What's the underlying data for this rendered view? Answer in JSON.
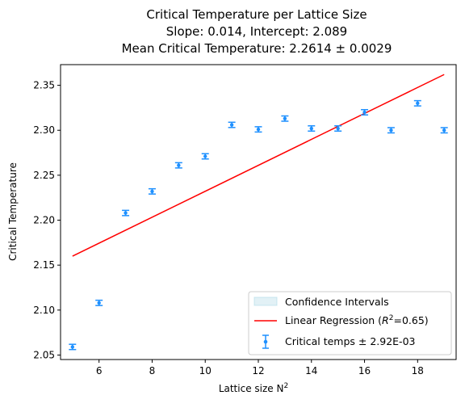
{
  "chart_data": {
    "type": "scatter",
    "title_lines": [
      "Critical Temperature per Lattice Size",
      "Slope: 0.014, Intercept: 2.089",
      "Mean Critical Temperature: 2.2614 ± 0.0029"
    ],
    "xlabel": "Lattice size N",
    "xlabel_sup": "2",
    "ylabel": "Critical Temperature",
    "xlim": [
      4.55,
      19.45
    ],
    "ylim": [
      2.045,
      2.373
    ],
    "xticks": [
      6,
      8,
      10,
      12,
      14,
      16,
      18
    ],
    "yticks": [
      2.05,
      2.1,
      2.15,
      2.2,
      2.25,
      2.3,
      2.35
    ],
    "ytick_labels": [
      "2.05",
      "2.10",
      "2.15",
      "2.20",
      "2.25",
      "2.30",
      "2.35"
    ],
    "grid": false,
    "legend_placement": "lower-right",
    "series": [
      {
        "name": "Critical temps ± 2.92E-03",
        "kind": "errorbar",
        "color": "#1e90ff",
        "x": [
          5,
          6,
          7,
          8,
          9,
          10,
          11,
          12,
          13,
          14,
          15,
          16,
          17,
          18,
          19
        ],
        "y": [
          2.059,
          2.108,
          2.208,
          2.232,
          2.261,
          2.271,
          2.306,
          2.301,
          2.313,
          2.302,
          2.302,
          2.32,
          2.3,
          2.33,
          2.3
        ],
        "yerr": 0.00292
      },
      {
        "name_prefix": "Linear Regression (",
        "name_math": "R",
        "name_sup": "2",
        "name_suffix": "=0.65)",
        "kind": "line",
        "color": "#ff0000",
        "slope": 0.014,
        "intercept": 2.089,
        "x_range": [
          5,
          19
        ],
        "y_endpoints": [
          2.16,
          2.362
        ]
      },
      {
        "name": "Confidence Intervals",
        "kind": "band",
        "color": "#add8e6"
      }
    ]
  }
}
